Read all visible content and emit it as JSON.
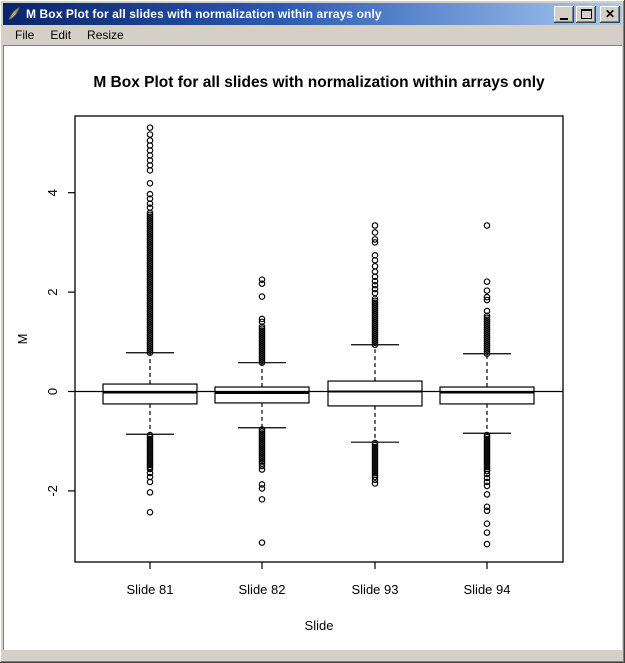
{
  "window": {
    "title": "M Box Plot for all slides with normalization within arrays only",
    "icons": {
      "app": "feather-icon",
      "minimize": "minimize-icon",
      "maximize": "maximize-icon",
      "close": "close-icon"
    },
    "buttons": {
      "close_glyph": "x"
    },
    "menu": [
      "File",
      "Edit",
      "Resize"
    ]
  },
  "chart_data": {
    "type": "boxplot",
    "title": "M Box Plot for all slides with normalization within arrays only",
    "xlabel": "Slide",
    "ylabel": "M",
    "ylim": [
      -3.4,
      5.5
    ],
    "yticks": [
      -2,
      0,
      2,
      4
    ],
    "grid": false,
    "reference_line_y": 0,
    "categories": [
      "Slide 81",
      "Slide 82",
      "Slide 93",
      "Slide 94"
    ],
    "series": [
      {
        "name": "Slide 81",
        "q1": -0.25,
        "median": -0.02,
        "q3": 0.15,
        "whisker_low": -0.86,
        "whisker_high": 0.78,
        "outlier_dense_ranges": [
          [
            0.78,
            3.62
          ],
          [
            -1.56,
            -0.86
          ]
        ],
        "outliers": [
          3.7,
          3.78,
          3.88,
          3.97,
          4.19,
          4.45,
          4.55,
          4.65,
          4.75,
          4.85,
          4.95,
          5.05,
          5.17,
          5.31,
          -1.64,
          -1.72,
          -1.82,
          -2.03,
          -2.43
        ]
      },
      {
        "name": "Slide 82",
        "q1": -0.23,
        "median": -0.03,
        "q3": 0.09,
        "whisker_low": -0.73,
        "whisker_high": 0.58,
        "outlier_dense_ranges": [
          [
            0.58,
            1.32
          ],
          [
            -1.45,
            -0.73
          ]
        ],
        "outliers": [
          1.4,
          1.46,
          1.91,
          2.17,
          2.25,
          -1.5,
          -1.57,
          -1.87,
          -1.95,
          -2.17,
          -3.04
        ]
      },
      {
        "name": "Slide 93",
        "q1": -0.29,
        "median": 0.0,
        "q3": 0.21,
        "whisker_low": -1.02,
        "whisker_high": 0.94,
        "outlier_dense_ranges": [
          [
            0.94,
            1.9
          ],
          [
            -1.72,
            -1.02
          ]
        ],
        "outliers": [
          1.98,
          2.06,
          2.14,
          2.22,
          2.31,
          2.41,
          2.52,
          2.64,
          2.74,
          3.0,
          3.06,
          3.2,
          3.34,
          -1.78,
          -1.85
        ]
      },
      {
        "name": "Slide 94",
        "q1": -0.25,
        "median": -0.02,
        "q3": 0.09,
        "whisker_low": -0.84,
        "whisker_high": 0.76,
        "outlier_dense_ranges": [
          [
            0.76,
            1.55
          ],
          [
            -1.6,
            -0.84
          ]
        ],
        "outliers": [
          1.62,
          1.84,
          1.9,
          2.03,
          2.21,
          3.34,
          -1.66,
          -1.74,
          -1.82,
          -1.9,
          -2.07,
          -2.32,
          -2.4,
          -2.66,
          -2.84,
          -3.07
        ]
      }
    ]
  }
}
